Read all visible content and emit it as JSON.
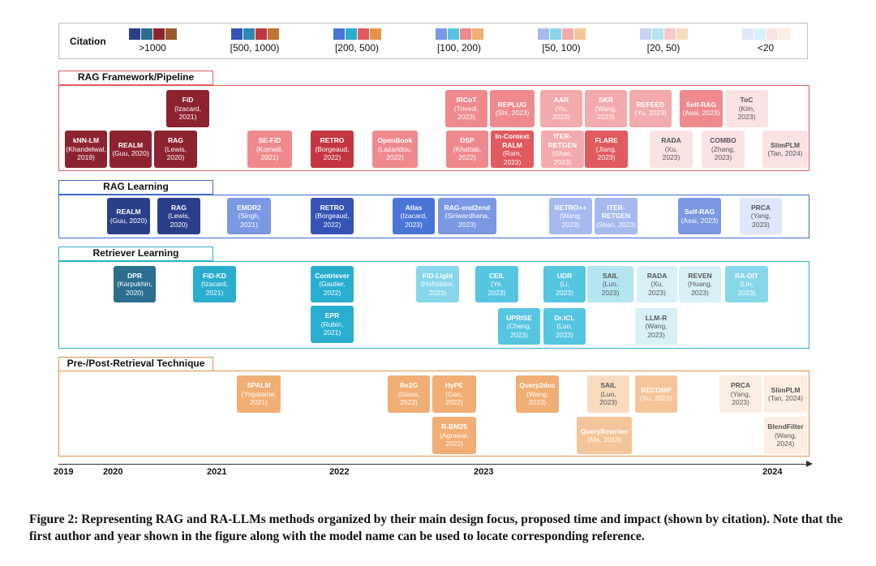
{
  "legend": {
    "title": "Citation",
    "groups": [
      {
        "label": ">1000",
        "colors": [
          "#2a3f8a",
          "#2b6e8e",
          "#8e2330",
          "#9a5a2a"
        ]
      },
      {
        "label": "[500, 1000)",
        "colors": [
          "#3553b5",
          "#2b8cb0",
          "#c4363f",
          "#c07332"
        ]
      },
      {
        "label": "[200, 500)",
        "colors": [
          "#4a74d6",
          "#2aaed0",
          "#e05a5e",
          "#e6904a"
        ]
      },
      {
        "label": "[100, 200)",
        "colors": [
          "#7b98e3",
          "#55c5e0",
          "#ee8a8e",
          "#f0ad74"
        ]
      },
      {
        "label": "[50, 100)",
        "colors": [
          "#a5b9ee",
          "#88d6ea",
          "#f3aaac",
          "#f5c59a"
        ]
      },
      {
        "label": "[20, 50)",
        "colors": [
          "#c6d3f5",
          "#b4e5f1",
          "#f7c9ca",
          "#f9dcc0"
        ]
      },
      {
        "label": "<20",
        "colors": [
          "#e0e7fa",
          "#d8f1f8",
          "#fbe2e3",
          "#fceee2"
        ]
      }
    ]
  },
  "sections": [
    {
      "label": "RAG Framework/Pipeline",
      "color": "#e05a5e"
    },
    {
      "label": "RAG Learning",
      "color": "#3d6bd0"
    },
    {
      "label": "Retriever Learning",
      "color": "#2aaed0"
    },
    {
      "label": "Pre-/Post-Retrieval Technique",
      "color": "#e6904a"
    }
  ],
  "methods": [
    {
      "name": "FiD",
      "info": "(Izacard,\n2021)",
      "section": 0,
      "tier": 0
    },
    {
      "name": "IRCoT",
      "info": "(Trivedi,\n2023)",
      "section": 0,
      "tier": 3
    },
    {
      "name": "REPLUG",
      "info": "(Shi, 2023)",
      "section": 0,
      "tier": 3
    },
    {
      "name": "AAR",
      "info": "(Yu,\n2023)",
      "section": 0,
      "tier": 4
    },
    {
      "name": "SKR",
      "info": "(Wang,\n2023)",
      "section": 0,
      "tier": 4
    },
    {
      "name": "REFEED",
      "info": "(Yu, 2023)",
      "section": 0,
      "tier": 4
    },
    {
      "name": "Self-RAG",
      "info": "(Asai, 2023)",
      "section": 0,
      "tier": 3
    },
    {
      "name": "ToC",
      "info": "(Kim,\n2023)",
      "section": 0,
      "tier": 6
    },
    {
      "name": "kNN-LM",
      "info": "(Khandelwal,\n2019)",
      "section": 0,
      "tier": 0
    },
    {
      "name": "REALM",
      "info": "(Guu, 2020)",
      "section": 0,
      "tier": 0
    },
    {
      "name": "RAG",
      "info": "(Lewis,\n2020)",
      "section": 0,
      "tier": 0
    },
    {
      "name": "SE-FiD",
      "info": "(Komeili,\n2021)",
      "section": 0,
      "tier": 3
    },
    {
      "name": "RETRO",
      "info": "(Borgeaud,\n2022)",
      "section": 0,
      "tier": 1
    },
    {
      "name": "OpenBook",
      "info": "(Lazaridou,\n2022)",
      "section": 0,
      "tier": 3
    },
    {
      "name": "DSP",
      "info": "(Khattab,\n2022)",
      "section": 0,
      "tier": 3
    },
    {
      "name": "In-Context\nRALM",
      "info": "(Ram,\n2023)",
      "section": 0,
      "tier": 2
    },
    {
      "name": "ITER-\nRETGEN",
      "info": "(Shao,\n2023)",
      "section": 0,
      "tier": 4
    },
    {
      "name": "FLARE",
      "info": "(Jiang,\n2023)",
      "section": 0,
      "tier": 2
    },
    {
      "name": "RADA",
      "info": "(Xu,\n2023)",
      "section": 0,
      "tier": 6
    },
    {
      "name": "COMBO",
      "info": "(Zhang,\n2023)",
      "section": 0,
      "tier": 6
    },
    {
      "name": "SlimPLM",
      "info": "(Tan, 2024)",
      "section": 0,
      "tier": 6
    },
    {
      "name": "REALM",
      "info": "(Guu, 2020)",
      "section": 1,
      "tier": 0
    },
    {
      "name": "RAG",
      "info": "(Lewis,\n2020)",
      "section": 1,
      "tier": 0
    },
    {
      "name": "EMDR2",
      "info": "(Singh,\n2021)",
      "section": 1,
      "tier": 3
    },
    {
      "name": "RETRO",
      "info": "(Borgeaud,\n2022)",
      "section": 1,
      "tier": 1
    },
    {
      "name": "Atlas",
      "info": "(Izacard,\n2023)",
      "section": 1,
      "tier": 2
    },
    {
      "name": "RAG-end2end",
      "info": "(Siriwardhana,\n2023)",
      "section": 1,
      "tier": 3
    },
    {
      "name": "RETRO++",
      "info": "(Wang,\n2023)",
      "section": 1,
      "tier": 4
    },
    {
      "name": "ITER-\nRETGEN",
      "info": "(Shao, 2023)",
      "section": 1,
      "tier": 4
    },
    {
      "name": "Self-RAG",
      "info": "(Asai, 2023)",
      "section": 1,
      "tier": 3
    },
    {
      "name": "PRCA",
      "info": "(Yang,\n2023)",
      "section": 1,
      "tier": 6
    },
    {
      "name": "DPR",
      "info": "(Karpukhin,\n2020)",
      "section": 2,
      "tier": 0
    },
    {
      "name": "FiD-KD",
      "info": "(Izacard,\n2021)",
      "section": 2,
      "tier": 2
    },
    {
      "name": "Contriever",
      "info": "(Gautier,\n2022)",
      "section": 2,
      "tier": 2
    },
    {
      "name": "EPR",
      "info": "(Rubin,\n2021)",
      "section": 2,
      "tier": 2
    },
    {
      "name": "FiD-Light",
      "info": "(Hofstätter,\n2023)",
      "section": 2,
      "tier": 4
    },
    {
      "name": "CEIL",
      "info": "(Ye,\n2023)",
      "section": 2,
      "tier": 3
    },
    {
      "name": "UPRISE",
      "info": "(Cheng,\n2023)",
      "section": 2,
      "tier": 3
    },
    {
      "name": "UDR",
      "info": "(Li,\n2023)",
      "section": 2,
      "tier": 3
    },
    {
      "name": "Dr.ICL",
      "info": "(Luo,\n2023)",
      "section": 2,
      "tier": 3
    },
    {
      "name": "SAIL",
      "info": "(Luo,\n2023)",
      "section": 2,
      "tier": 5
    },
    {
      "name": "RADA",
      "info": "(Xu,\n2023)",
      "section": 2,
      "tier": 6
    },
    {
      "name": "LLM-R",
      "info": "(Wang,\n2023)",
      "section": 2,
      "tier": 6
    },
    {
      "name": "REVEN",
      "info": "(Huang,\n2023)",
      "section": 2,
      "tier": 6
    },
    {
      "name": "RA-DIT",
      "info": "(Lin,\n2023)",
      "section": 2,
      "tier": 4
    },
    {
      "name": "SPALM",
      "info": "(Yogatame,\n2021)",
      "section": 3,
      "tier": 3
    },
    {
      "name": "Re2G",
      "info": "(Glass,\n2022)",
      "section": 3,
      "tier": 3
    },
    {
      "name": "HyPE",
      "info": "(Gao,\n2022)",
      "section": 3,
      "tier": 3
    },
    {
      "name": "R-BM25",
      "info": "(Agrawal,\n2022)",
      "section": 3,
      "tier": 3
    },
    {
      "name": "Query2doc",
      "info": "(Wang,\n2023)",
      "section": 3,
      "tier": 3
    },
    {
      "name": "SAIL",
      "info": "(Luo,\n2023)",
      "section": 3,
      "tier": 5
    },
    {
      "name": "RECOMP",
      "info": "(Xu, 2023)",
      "section": 3,
      "tier": 4
    },
    {
      "name": "QueryRewriter",
      "info": "(Ma, 2023)",
      "section": 3,
      "tier": 4
    },
    {
      "name": "PRCA",
      "info": "(Yang,\n2023)",
      "section": 3,
      "tier": 6
    },
    {
      "name": "SlimPLM",
      "info": "(Tan, 2024)",
      "section": 3,
      "tier": 6
    },
    {
      "name": "BlendFilter",
      "info": "(Wang,\n2024)",
      "section": 3,
      "tier": 6
    }
  ],
  "timeline": {
    "years": [
      "2019",
      "2020",
      "2021",
      "2022",
      "2023",
      "2024"
    ]
  },
  "caption": "Figure 2: Representing RAG and RA-LLMs methods organized by their main design focus, proposed time and impact (shown by citation). Note that the first author and year shown in the figure along with the model name can be used to locate corresponding reference."
}
